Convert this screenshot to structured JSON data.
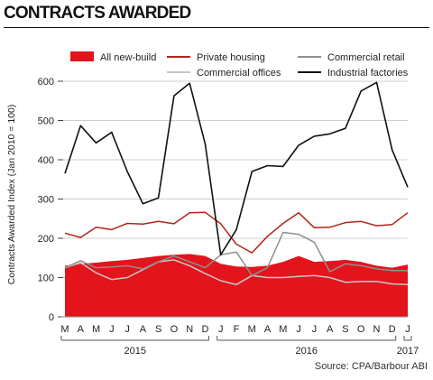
{
  "header": {
    "title": "CONTRACTS AWARDED"
  },
  "source": "Source: CPA/Barbour ABI",
  "colors": {
    "all_new_build": "#e3141c",
    "private_housing": "#b22418",
    "commercial_retail": "#8f8f8f",
    "commercial_offices": "#c8c8c8",
    "industrial_factories": "#111111"
  },
  "chart_data": {
    "type": "line",
    "ylabel": "Contracts Awarded Index (Jan 2010 = 100)",
    "ylim": [
      0,
      600
    ],
    "yticks": [
      0,
      100,
      200,
      300,
      400,
      500,
      600
    ],
    "categories": [
      "M",
      "A",
      "M",
      "J",
      "J",
      "A",
      "S",
      "O",
      "N",
      "D",
      "J",
      "F",
      "M",
      "A",
      "M",
      "J",
      "J",
      "A",
      "S",
      "O",
      "N",
      "D",
      "J"
    ],
    "year_labels": [
      {
        "label": "2015",
        "start": 0,
        "end": 9
      },
      {
        "label": "2016",
        "start": 10,
        "end": 21
      },
      {
        "label": "2017",
        "start": 22,
        "end": 22
      }
    ],
    "legend_position": "top",
    "series": [
      {
        "name": "All new-build",
        "style": "area",
        "values": [
          130,
          135,
          138,
          142,
          145,
          150,
          155,
          158,
          160,
          155,
          135,
          128,
          127,
          130,
          140,
          155,
          140,
          142,
          145,
          140,
          130,
          125,
          133
        ]
      },
      {
        "name": "Private housing",
        "style": "line",
        "values": [
          213,
          202,
          228,
          222,
          238,
          236,
          243,
          237,
          265,
          266,
          237,
          185,
          163,
          205,
          238,
          265,
          227,
          228,
          240,
          243,
          232,
          235,
          265
        ]
      },
      {
        "name": "Commercial retail",
        "style": "line",
        "values": [
          125,
          143,
          125,
          127,
          130,
          122,
          140,
          155,
          140,
          125,
          158,
          165,
          105,
          125,
          215,
          210,
          190,
          115,
          135,
          130,
          122,
          118,
          118
        ]
      },
      {
        "name": "Commercial offices",
        "style": "line",
        "values": [
          125,
          138,
          112,
          95,
          100,
          120,
          140,
          145,
          130,
          110,
          92,
          82,
          105,
          100,
          100,
          103,
          105,
          100,
          88,
          90,
          90,
          84,
          82
        ]
      },
      {
        "name": "Industrial factories",
        "style": "line",
        "values": [
          365,
          487,
          443,
          470,
          370,
          288,
          303,
          563,
          595,
          440,
          158,
          222,
          370,
          385,
          383,
          437,
          460,
          466,
          480,
          575,
          597,
          425,
          330
        ]
      }
    ]
  }
}
